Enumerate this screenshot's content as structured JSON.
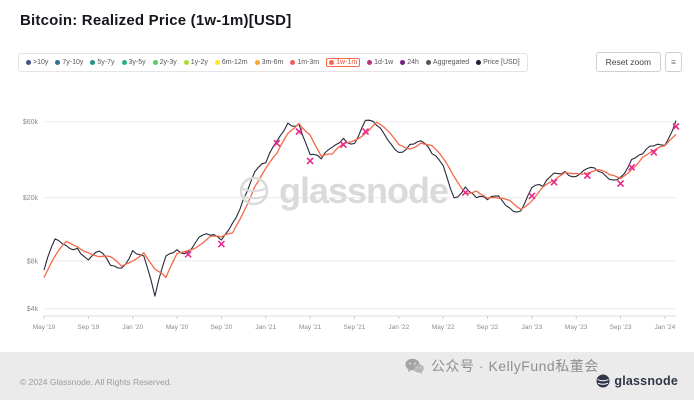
{
  "header": {
    "title": "Bitcoin: Realized Price (1w-1m)[USD]"
  },
  "controls": {
    "reset_zoom_label": "Reset zoom",
    "menu_icon": "≡"
  },
  "legend": {
    "items": [
      {
        "label": ">10y",
        "color": "#3b528b"
      },
      {
        "label": "7y-10y",
        "color": "#2c728e"
      },
      {
        "label": "5y-7y",
        "color": "#21918c"
      },
      {
        "label": "3y-5y",
        "color": "#28ae80"
      },
      {
        "label": "2y-3y",
        "color": "#5ec962"
      },
      {
        "label": "1y-2y",
        "color": "#addc30"
      },
      {
        "label": "6m-12m",
        "color": "#fde725"
      },
      {
        "label": "3m-6m",
        "color": "#fca636"
      },
      {
        "label": "1m-3m",
        "color": "#f1605d"
      },
      {
        "label": "1w-1m",
        "color": "#f4694b",
        "active": true
      },
      {
        "label": "1d-1w",
        "color": "#b73779"
      },
      {
        "label": "24h",
        "color": "#721f81"
      },
      {
        "label": "Aggregated",
        "color": "#555555"
      },
      {
        "label": "Price [USD]",
        "color": "#1c2033"
      }
    ]
  },
  "watermark": {
    "text": "glassnode"
  },
  "footer": {
    "copyright": "© 2024 Glassnode. All Rights Reserved.",
    "wechat_text": "公众号 · KellyFund私董会",
    "brand": "glassnode"
  },
  "chart_data": {
    "type": "line",
    "title": "Bitcoin: Realized Price (1w-1m)[USD]",
    "x_interval": "monthly",
    "x_range": [
      "2019-05",
      "2024-02"
    ],
    "y_scale": "log",
    "ylim": [
      3.6,
      95
    ],
    "y_unit": "USD (thousands)",
    "grid": "horizontal",
    "legend_position": "top",
    "y_ticks": [
      {
        "value": 4,
        "label": "$4k"
      },
      {
        "value": 8,
        "label": "$8k"
      },
      {
        "value": 20,
        "label": "$20k"
      },
      {
        "value": 60,
        "label": "$60k"
      }
    ],
    "x_ticks": [
      {
        "index": 0,
        "label": "May '19"
      },
      {
        "index": 4,
        "label": "Sep '19"
      },
      {
        "index": 8,
        "label": "Jan '20"
      },
      {
        "index": 12,
        "label": "May '20"
      },
      {
        "index": 16,
        "label": "Sep '20"
      },
      {
        "index": 20,
        "label": "Jan '21"
      },
      {
        "index": 24,
        "label": "May '21"
      },
      {
        "index": 28,
        "label": "Sep '21"
      },
      {
        "index": 32,
        "label": "Jan '22"
      },
      {
        "index": 36,
        "label": "May '22"
      },
      {
        "index": 40,
        "label": "Sep '22"
      },
      {
        "index": 44,
        "label": "Jan '23"
      },
      {
        "index": 48,
        "label": "May '23"
      },
      {
        "index": 52,
        "label": "Sep '23"
      },
      {
        "index": 56,
        "label": "Jan '24"
      }
    ],
    "series": [
      {
        "name": "Price [USD]",
        "color": "#262b3a",
        "values": [
          7.0,
          11.0,
          10.0,
          9.6,
          8.1,
          9.2,
          7.5,
          7.2,
          9.3,
          8.6,
          4.8,
          8.6,
          9.4,
          9.1,
          11.3,
          11.6,
          10.8,
          13.8,
          19.7,
          29.0,
          33.1,
          45.2,
          58.9,
          57.8,
          37.3,
          35.0,
          41.5,
          47.2,
          43.8,
          61.3,
          57.0,
          46.2,
          38.5,
          43.2,
          45.5,
          37.7,
          31.8,
          19.9,
          23.3,
          20.0,
          19.4,
          20.5,
          17.2,
          16.5,
          23.1,
          23.5,
          28.5,
          29.2,
          27.2,
          30.5,
          29.2,
          26.0,
          26.9,
          34.7,
          37.7,
          42.3,
          42.6,
          61.0
        ]
      },
      {
        "name": "Realized Price 1w-1m",
        "color": "#f4694b",
        "values": [
          6.3,
          8.6,
          10.6,
          9.8,
          9.0,
          8.5,
          8.5,
          7.4,
          8.0,
          9.0,
          7.1,
          6.3,
          8.9,
          9.3,
          10.0,
          11.4,
          11.3,
          12.0,
          16.2,
          23.4,
          30.6,
          37.9,
          50.7,
          58.5,
          49.6,
          36.4,
          37.6,
          43.8,
          45.8,
          50.8,
          59.6,
          52.7,
          43.1,
          40.4,
          44.1,
          42.4,
          35.3,
          27.0,
          21.3,
          22.0,
          19.8,
          19.8,
          19.2,
          16.9,
          19.1,
          23.3,
          25.5,
          28.8,
          28.4,
          28.5,
          30.0,
          27.9,
          26.4,
          30.0,
          35.9,
          39.5,
          42.4,
          50.0
        ]
      }
    ],
    "markers": {
      "name": "x-signal",
      "symbol": "x",
      "color": "#e82b8d",
      "points": [
        {
          "index": 13,
          "value": 8.8
        },
        {
          "index": 16,
          "value": 10.2
        },
        {
          "index": 21,
          "value": 44.0
        },
        {
          "index": 23,
          "value": 52.0
        },
        {
          "index": 24,
          "value": 34.0
        },
        {
          "index": 27,
          "value": 43.0
        },
        {
          "index": 29,
          "value": 52.0
        },
        {
          "index": 38,
          "value": 21.5
        },
        {
          "index": 44,
          "value": 20.5
        },
        {
          "index": 46,
          "value": 25.0
        },
        {
          "index": 49,
          "value": 27.5
        },
        {
          "index": 52,
          "value": 24.5
        },
        {
          "index": 53,
          "value": 31.0
        },
        {
          "index": 55,
          "value": 38.5
        },
        {
          "index": 57,
          "value": 56.0
        }
      ]
    }
  }
}
